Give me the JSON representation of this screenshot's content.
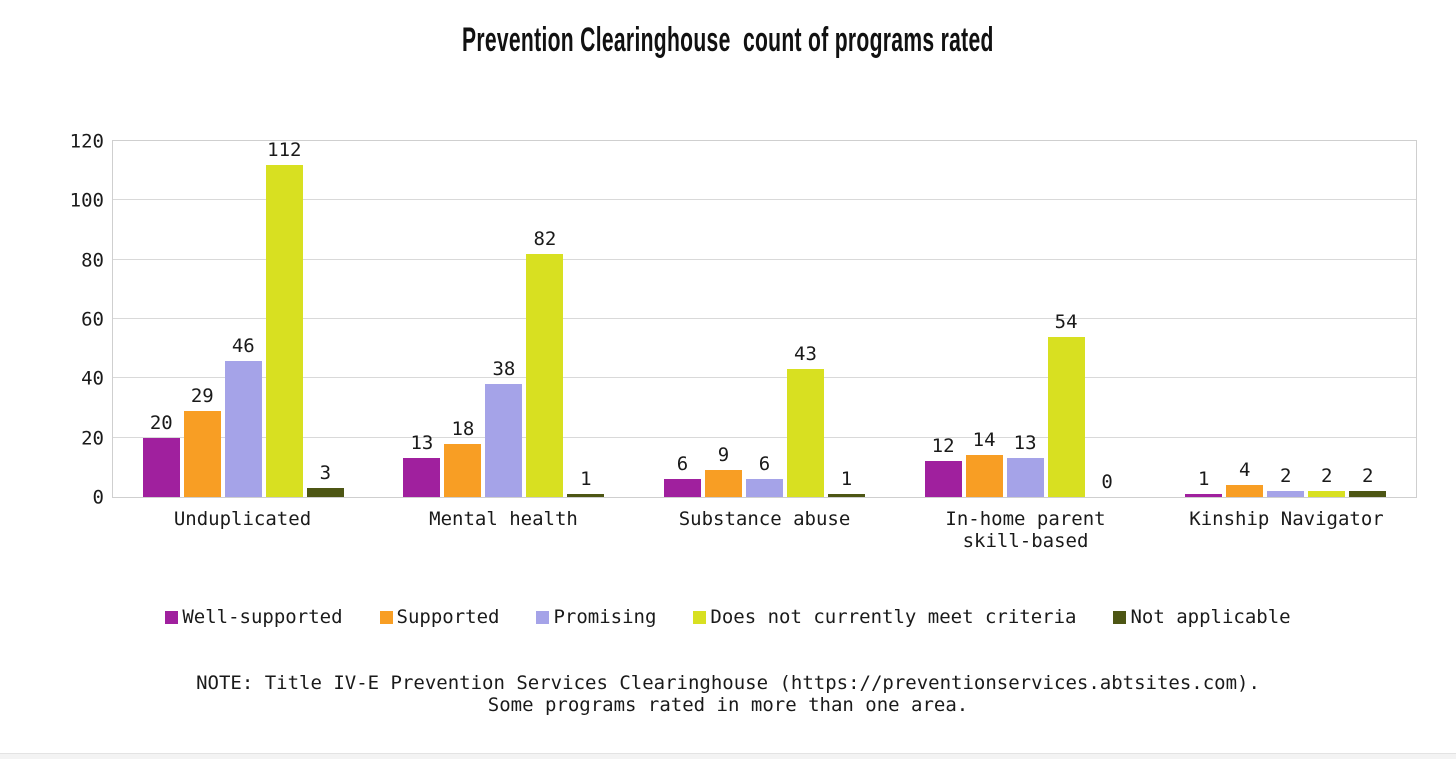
{
  "title": "Prevention Clearinghouse  count of programs rated",
  "chart_data": {
    "type": "bar",
    "categories": [
      "Unduplicated",
      "Mental health",
      "Substance abuse",
      "In-home parent\nskill-based",
      "Kinship Navigator"
    ],
    "series": [
      {
        "name": "Well-supported",
        "color": "#A0209E",
        "values": [
          20,
          13,
          6,
          12,
          1
        ]
      },
      {
        "name": "Supported",
        "color": "#F89E24",
        "values": [
          29,
          18,
          9,
          14,
          4
        ]
      },
      {
        "name": "Promising",
        "color": "#A5A3E8",
        "values": [
          46,
          38,
          6,
          13,
          2
        ]
      },
      {
        "name": "Does not currently meet criteria",
        "color": "#D8E021",
        "values": [
          112,
          82,
          43,
          54,
          2
        ]
      },
      {
        "name": "Not applicable",
        "color": "#4D5614",
        "values": [
          3,
          1,
          1,
          0,
          2
        ]
      }
    ],
    "ylim": [
      0,
      120
    ],
    "ytick_step": 20,
    "grid": true,
    "legend_position": "bottom",
    "colors": {
      "gridline": "#d9d9d9",
      "frame": "#cfcfcf",
      "text": "#1a1a1a"
    }
  },
  "note": {
    "line1": "NOTE: Title IV-E Prevention Services Clearinghouse (https://preventionservices.abtsites.com).",
    "line2": "Some programs rated in more than one area."
  }
}
